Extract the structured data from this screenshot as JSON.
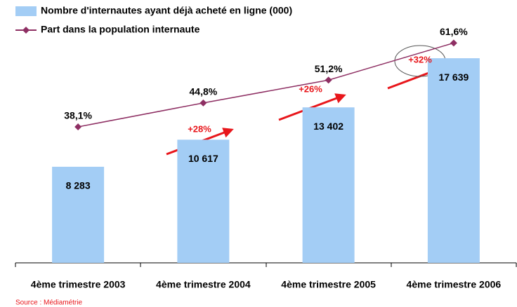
{
  "chart_data": {
    "type": "bar_line",
    "categories": [
      "4ème trimestre 2003",
      "4ème trimestre 2004",
      "4ème trimestre 2005",
      "4ème trimestre 2006"
    ],
    "series": [
      {
        "name": "Nombre d'internautes ayant déjà acheté en ligne (000)",
        "color": "#a3cdf5",
        "values": [
          8283,
          10617,
          13402,
          17639
        ],
        "value_labels": [
          "8 283",
          "10 617",
          "13 402",
          "17 639"
        ]
      },
      {
        "name": "Part dans la population internaute",
        "color": "#8e2f63",
        "axis": "y2",
        "values": [
          38.1,
          44.8,
          51.2,
          61.6
        ],
        "value_labels": [
          "38,1%",
          "44,8%",
          "51,2%",
          "61,6%"
        ]
      }
    ],
    "ylim": [
      0,
      20000
    ],
    "y2lim": [
      0,
      65
    ],
    "annotations": [
      "+28%",
      "+26%",
      "+32%"
    ],
    "source": "Source : Médiamétrie"
  }
}
